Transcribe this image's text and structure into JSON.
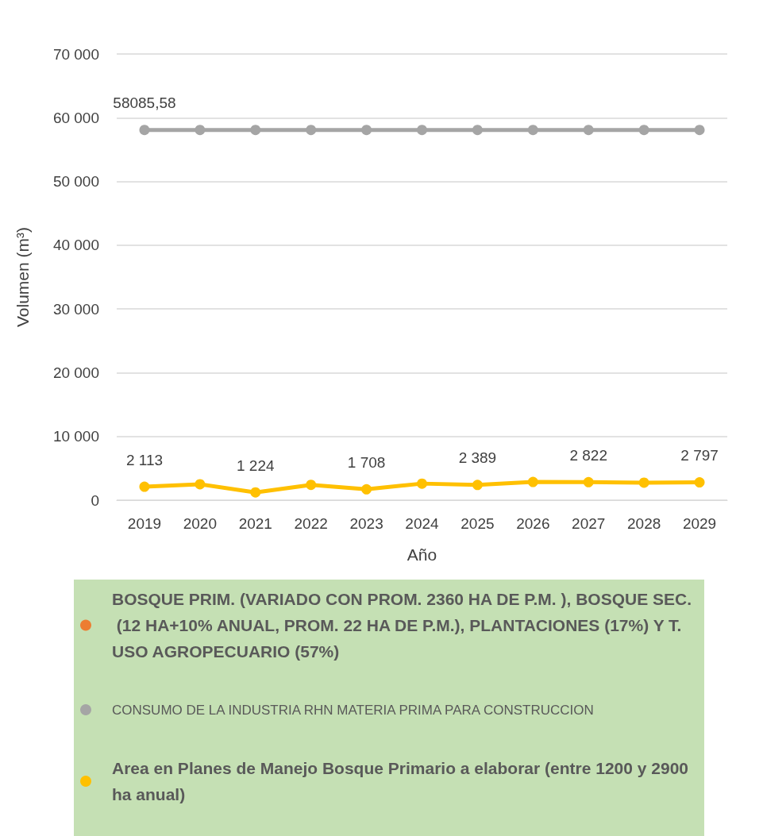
{
  "chart_data": {
    "type": "line",
    "xlabel": "Año",
    "ylabel": "Volumen (m³)",
    "categories": [
      "2019",
      "2020",
      "2021",
      "2022",
      "2023",
      "2024",
      "2025",
      "2026",
      "2027",
      "2028",
      "2029"
    ],
    "series": [
      {
        "name": "BOSQUE PRIM. (VARIADO CON PROM. 2360 HA DE P.M. ), BOSQUE SEC. (12 HA+10% ANUAL, PROM. 22 HA DE P.M.), PLANTACIONES (17%) Y T. USO AGROPECUARIO (57%)",
        "color": "#ed7d31",
        "values": [
          null,
          null,
          null,
          null,
          null,
          null,
          null,
          null,
          null,
          null,
          null
        ]
      },
      {
        "name": "CONSUMO DE LA INDUSTRIA RHN MATERIA PRIMA PARA CONSTRUCCION",
        "color": "#a5a5a5",
        "values": [
          58085.58,
          58085.58,
          58085.58,
          58085.58,
          58085.58,
          58085.58,
          58085.58,
          58085.58,
          58085.58,
          58085.58,
          58085.58
        ],
        "value_labels": [
          "58085,58",
          null,
          null,
          null,
          null,
          null,
          null,
          null,
          null,
          null,
          null
        ]
      },
      {
        "name": "Area en Planes de Manejo Bosque Primario a elaborar (entre 1200 y 2900 ha anual)",
        "color": "#ffc000",
        "values": [
          2113,
          2500,
          1224,
          2400,
          1708,
          2600,
          2389,
          2850,
          2822,
          2750,
          2797
        ],
        "value_labels": [
          "2 113",
          null,
          "1 224",
          null,
          "1 708",
          null,
          "2 389",
          null,
          "2 822",
          null,
          "2 797"
        ]
      }
    ],
    "ylim": [
      0,
      70000
    ],
    "yticks": [
      {
        "value": 0,
        "label": "0"
      },
      {
        "value": 10000,
        "label": "10 000"
      },
      {
        "value": 20000,
        "label": "20 000"
      },
      {
        "value": 30000,
        "label": "30 000"
      },
      {
        "value": 40000,
        "label": "40 000"
      },
      {
        "value": 50000,
        "label": "50 000"
      },
      {
        "value": 60000,
        "label": "60 000"
      },
      {
        "value": 70000,
        "label": "70 000"
      }
    ],
    "grid": "y",
    "legend": "bottom",
    "marker": "circle",
    "line_style": "solid"
  }
}
